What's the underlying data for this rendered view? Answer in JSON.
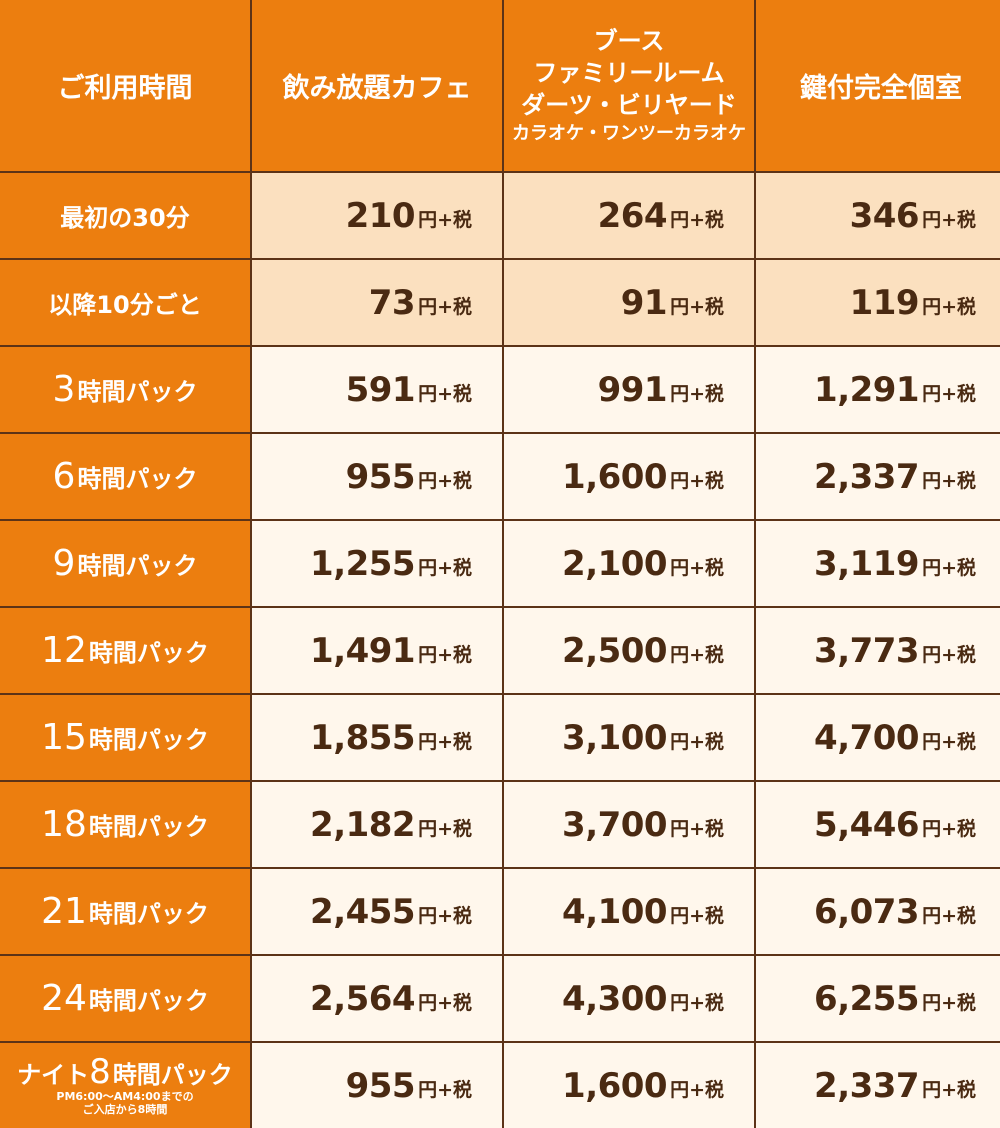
{
  "header": {
    "col0": "ご利用時間",
    "col1": "飲み放題カフェ",
    "col2_lines": [
      "ブース",
      "ファミリールーム",
      "ダーツ・ビリヤード"
    ],
    "col2_small": "カラオケ・ワンツーカラオケ",
    "col3": "鍵付完全個室"
  },
  "unit_label": "円+税",
  "rows": [
    {
      "label": "最初の30分",
      "prices": [
        "210",
        "264",
        "346"
      ]
    },
    {
      "label": "以降10分ごと",
      "prices": [
        "73",
        "91",
        "119"
      ]
    },
    {
      "label_num": "3",
      "label_text": "時間パック",
      "prices": [
        "591",
        "991",
        "1,291"
      ]
    },
    {
      "label_num": "6",
      "label_text": "時間パック",
      "prices": [
        "955",
        "1,600",
        "2,337"
      ]
    },
    {
      "label_num": "9",
      "label_text": "時間パック",
      "prices": [
        "1,255",
        "2,100",
        "3,119"
      ]
    },
    {
      "label_num": "12",
      "label_text": "時間パック",
      "prices": [
        "1,491",
        "2,500",
        "3,773"
      ]
    },
    {
      "label_num": "15",
      "label_text": "時間パック",
      "prices": [
        "1,855",
        "3,100",
        "4,700"
      ]
    },
    {
      "label_num": "18",
      "label_text": "時間パック",
      "prices": [
        "2,182",
        "3,700",
        "5,446"
      ]
    },
    {
      "label_num": "21",
      "label_text": "時間パック",
      "prices": [
        "2,455",
        "4,100",
        "6,073"
      ]
    },
    {
      "label_num": "24",
      "label_text": "時間パック",
      "prices": [
        "2,564",
        "4,300",
        "6,255"
      ]
    },
    {
      "label_pre": "ナイト",
      "label_num": "8",
      "label_text": "時間パック",
      "label_sub1": "PM6:00～AM4:00までの",
      "label_sub2": "ご入店から8時間",
      "prices": [
        "955",
        "1,600",
        "2,337"
      ]
    }
  ],
  "colors": {
    "header_orange": "#ec7e0f",
    "light_orange": "#fbe0bf",
    "cream": "#fff7ec",
    "text_brown": "#4a2a12",
    "border_brown": "#5c3317"
  }
}
